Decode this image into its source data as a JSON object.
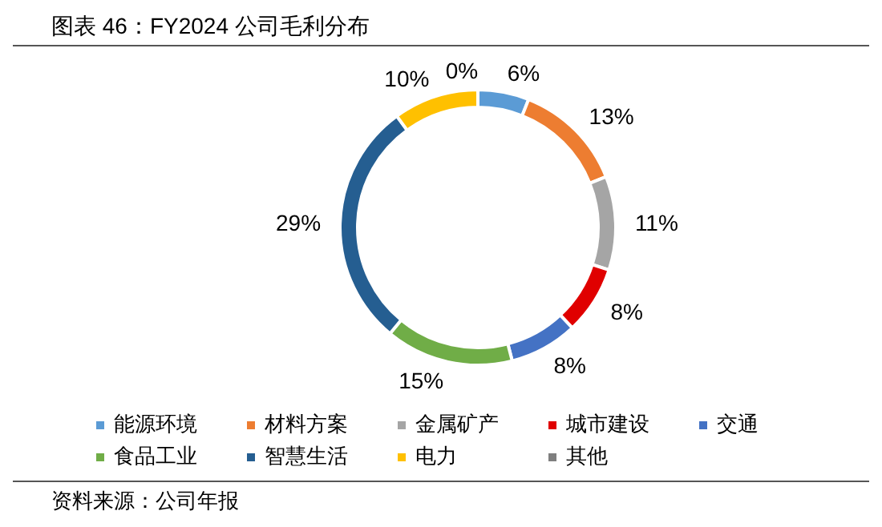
{
  "chart_data": {
    "type": "donut",
    "title": "图表 46：FY2024 公司毛利分布",
    "categories": [
      "能源环境",
      "材料方案",
      "金属矿产",
      "城市建设",
      "交通",
      "食品工业",
      "智慧生活",
      "电力",
      "其他"
    ],
    "values": [
      6,
      13,
      11,
      8,
      8,
      15,
      29,
      10,
      0
    ],
    "value_labels": [
      "6%",
      "13%",
      "11%",
      "8%",
      "8%",
      "15%",
      "29%",
      "10%",
      "0%"
    ],
    "colors": [
      "#5b9bd5",
      "#ed7d31",
      "#a5a5a5",
      "#e00000",
      "#4472c4",
      "#70ad47",
      "#255e91",
      "#ffc000",
      "#7f7f7f"
    ],
    "legend": "bottom",
    "annotations": [
      "资料来源：公司年报"
    ]
  }
}
